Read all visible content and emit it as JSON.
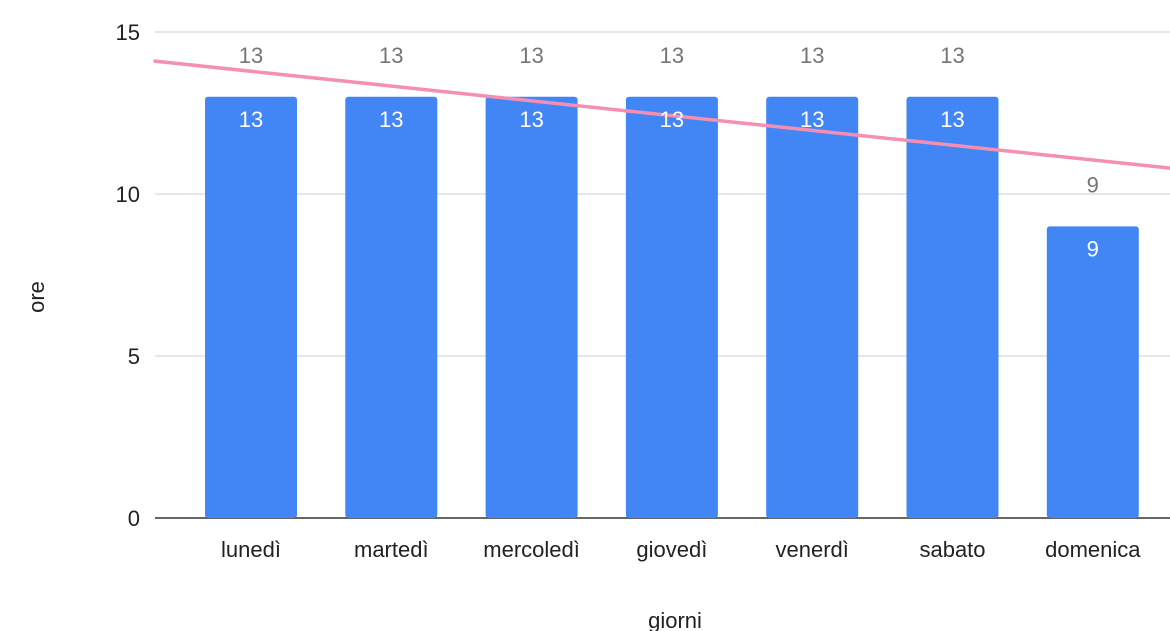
{
  "chart_data": {
    "type": "bar",
    "categories": [
      "lunedì",
      "martedì",
      "mercoledì",
      "giovedì",
      "venerdì",
      "sabato",
      "domenica"
    ],
    "values": [
      13,
      13,
      13,
      13,
      13,
      13,
      9
    ],
    "xlabel": "giorni",
    "ylabel": "ore",
    "ylim": [
      0,
      15
    ],
    "yticks": [
      0,
      5,
      10,
      15
    ],
    "grid": true,
    "bar_color": "#4285f4",
    "trendline": {
      "type": "linear",
      "color": "#f48fb1",
      "start_value": 14.1,
      "end_value": 10.8
    }
  }
}
